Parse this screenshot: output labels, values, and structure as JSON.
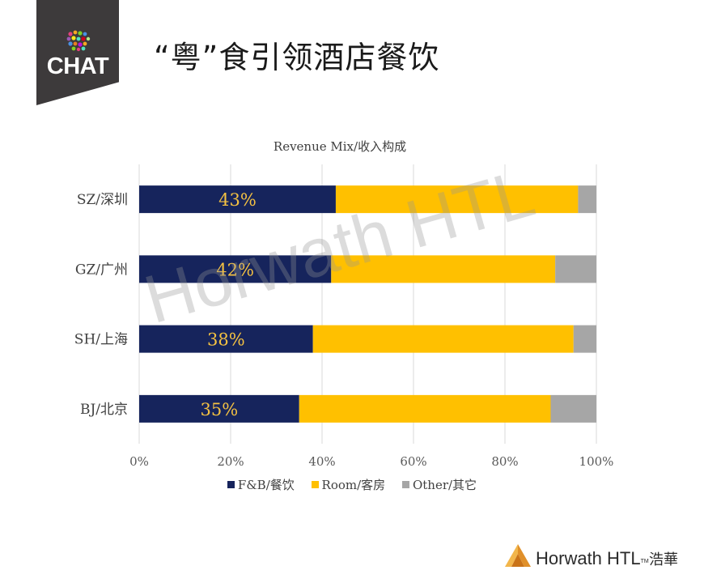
{
  "header": {
    "badge_label": "CHAT",
    "title": "“粤”食引领酒店餐饮"
  },
  "watermark": "Horwath HTL",
  "footer": {
    "brand": "Horwath HTL",
    "tm": "TM",
    "cn_brand": "浩華"
  },
  "colors": {
    "fnb": "#16245c",
    "room": "#ffc000",
    "other": "#a6a6a6"
  },
  "chart_data": {
    "type": "bar",
    "orientation": "horizontal",
    "stacked": true,
    "percent": true,
    "title": "Revenue Mix/收入构成",
    "categories": [
      "SZ/深圳",
      "GZ/广州",
      "SH/上海",
      "BJ/北京"
    ],
    "series": [
      {
        "name": "F&B/餐饮",
        "values": [
          43,
          42,
          38,
          35
        ]
      },
      {
        "name": "Room/客房",
        "values": [
          53,
          49,
          57,
          55
        ]
      },
      {
        "name": "Other/其它",
        "values": [
          4,
          9,
          5,
          10
        ]
      }
    ],
    "data_labels": [
      "43%",
      "42%",
      "38%",
      "35%"
    ],
    "x_ticks": [
      "0%",
      "20%",
      "40%",
      "60%",
      "80%",
      "100%"
    ],
    "xlim": [
      0,
      100
    ],
    "grid": "vertical",
    "legend": "bottom"
  }
}
